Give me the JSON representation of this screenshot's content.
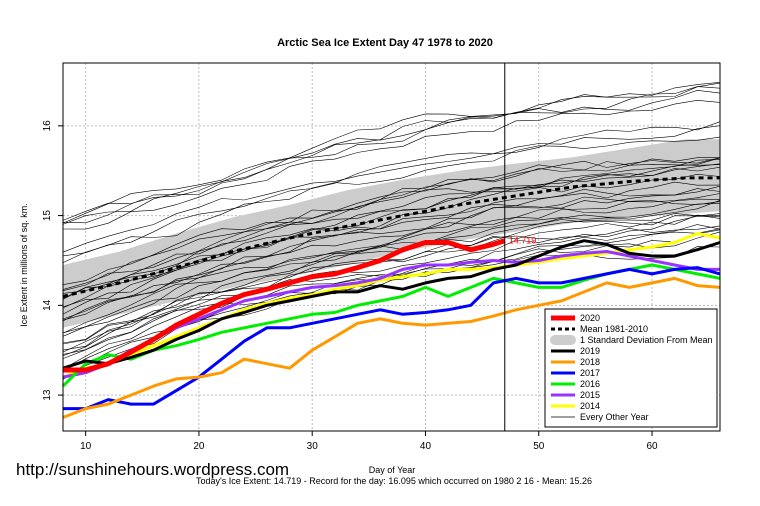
{
  "watermark": "http://sunshinehours.wordpress.com",
  "footer": "Today's Ice Extent: 14.719  - Record for the day: 16.095 which occurred on 1980 2 16  - Mean: 15.26",
  "colors": {
    "y2020": "#ff0000",
    "mean": "#000000",
    "sd_band": "#cccccc",
    "y2019": "#000000",
    "y2018": "#ff9900",
    "y2017": "#0000ff",
    "y2016": "#00ee00",
    "y2015": "#9933ff",
    "y2014": "#ffff00",
    "other": "#000000"
  },
  "chart_data": {
    "type": "line",
    "title": "Arctic Sea Ice Extent Day 47 1978 to 2020",
    "xlabel": "Day of Year",
    "ylabel": "Ice Extent in millions of sq. km.",
    "xlim": [
      8,
      66
    ],
    "ylim": [
      12.6,
      16.7
    ],
    "x_ticks": [
      10,
      20,
      30,
      40,
      50,
      60
    ],
    "y_ticks": [
      13,
      14,
      15,
      16
    ],
    "grid": true,
    "current_day": 47,
    "annotation": "14.719",
    "legend_position": "bottom-right",
    "legend": [
      "2020",
      "Mean 1981-2010",
      "1 Standard Deviation From Mean",
      "2019",
      "2018",
      "2017",
      "2016",
      "2015",
      "2014",
      "Every Other Year"
    ],
    "sd_band": {
      "x": [
        8,
        13,
        18,
        23,
        28,
        33,
        38,
        43,
        48,
        53,
        58,
        63,
        66
      ],
      "lower": [
        13.75,
        13.9,
        14.05,
        14.2,
        14.32,
        14.45,
        14.6,
        14.72,
        14.82,
        14.92,
        14.98,
        15.02,
        15.05
      ],
      "upper": [
        14.45,
        14.6,
        14.8,
        14.98,
        15.12,
        15.28,
        15.4,
        15.5,
        15.58,
        15.65,
        15.75,
        15.85,
        15.85
      ]
    },
    "mean": {
      "x": [
        8,
        13,
        18,
        23,
        28,
        33,
        38,
        43,
        48,
        53,
        58,
        63,
        66
      ],
      "y": [
        14.1,
        14.25,
        14.42,
        14.6,
        14.75,
        14.88,
        15.0,
        15.12,
        15.22,
        15.32,
        15.38,
        15.42,
        15.42
      ]
    },
    "series": [
      {
        "name": "2020",
        "x": [
          8,
          10,
          12,
          14,
          16,
          18,
          20,
          22,
          24,
          26,
          28,
          30,
          32,
          34,
          36,
          38,
          40,
          42,
          44,
          46,
          47
        ],
        "y": [
          13.28,
          13.28,
          13.35,
          13.48,
          13.62,
          13.78,
          13.9,
          14.02,
          14.12,
          14.18,
          14.25,
          14.32,
          14.35,
          14.42,
          14.5,
          14.62,
          14.7,
          14.7,
          14.62,
          14.68,
          14.72
        ]
      },
      {
        "name": "2019",
        "x": [
          8,
          10,
          12,
          14,
          16,
          18,
          20,
          22,
          24,
          26,
          28,
          30,
          32,
          34,
          36,
          38,
          40,
          42,
          44,
          46,
          48,
          50,
          52,
          54,
          56,
          58,
          60,
          62,
          64,
          66
        ],
        "y": [
          13.3,
          13.38,
          13.35,
          13.42,
          13.5,
          13.62,
          13.72,
          13.85,
          13.92,
          14.0,
          14.05,
          14.1,
          14.15,
          14.15,
          14.22,
          14.18,
          14.25,
          14.3,
          14.32,
          14.4,
          14.45,
          14.55,
          14.65,
          14.72,
          14.68,
          14.58,
          14.55,
          14.55,
          14.62,
          14.7
        ]
      },
      {
        "name": "2018",
        "x": [
          8,
          10,
          12,
          14,
          16,
          18,
          20,
          22,
          24,
          26,
          28,
          30,
          32,
          34,
          36,
          38,
          40,
          42,
          44,
          46,
          48,
          50,
          52,
          54,
          56,
          58,
          60,
          62,
          64,
          66
        ],
        "y": [
          12.75,
          12.85,
          12.9,
          13.0,
          13.1,
          13.18,
          13.2,
          13.25,
          13.4,
          13.35,
          13.3,
          13.5,
          13.65,
          13.8,
          13.85,
          13.8,
          13.78,
          13.8,
          13.82,
          13.88,
          13.95,
          14.0,
          14.05,
          14.15,
          14.25,
          14.2,
          14.25,
          14.3,
          14.22,
          14.2
        ]
      },
      {
        "name": "2017",
        "x": [
          8,
          10,
          12,
          14,
          16,
          18,
          20,
          22,
          24,
          26,
          28,
          30,
          32,
          34,
          36,
          38,
          40,
          42,
          44,
          46,
          48,
          50,
          52,
          54,
          56,
          58,
          60,
          62,
          64,
          66
        ],
        "y": [
          12.85,
          12.85,
          12.95,
          12.9,
          12.9,
          13.05,
          13.2,
          13.4,
          13.6,
          13.75,
          13.75,
          13.8,
          13.85,
          13.9,
          13.95,
          13.9,
          13.92,
          13.95,
          14.0,
          14.25,
          14.3,
          14.25,
          14.25,
          14.3,
          14.35,
          14.4,
          14.35,
          14.4,
          14.42,
          14.35
        ]
      },
      {
        "name": "2016",
        "x": [
          8,
          10,
          12,
          14,
          16,
          18,
          20,
          22,
          24,
          26,
          28,
          30,
          32,
          34,
          36,
          38,
          40,
          42,
          44,
          46,
          48,
          50,
          52,
          54,
          56,
          58,
          60,
          62,
          64,
          66
        ],
        "y": [
          13.1,
          13.35,
          13.45,
          13.4,
          13.5,
          13.55,
          13.62,
          13.7,
          13.75,
          13.8,
          13.85,
          13.9,
          13.92,
          14.0,
          14.05,
          14.1,
          14.2,
          14.1,
          14.2,
          14.3,
          14.25,
          14.2,
          14.2,
          14.28,
          14.35,
          14.4,
          14.45,
          14.4,
          14.35,
          14.3
        ]
      },
      {
        "name": "2015",
        "x": [
          8,
          10,
          12,
          14,
          16,
          18,
          20,
          22,
          24,
          26,
          28,
          30,
          32,
          34,
          36,
          38,
          40,
          42,
          44,
          46,
          48,
          50,
          52,
          54,
          56,
          58,
          60,
          62,
          64,
          66
        ],
        "y": [
          13.2,
          13.25,
          13.35,
          13.5,
          13.62,
          13.75,
          13.85,
          13.95,
          14.05,
          14.1,
          14.15,
          14.2,
          14.22,
          14.25,
          14.3,
          14.4,
          14.45,
          14.45,
          14.48,
          14.5,
          14.48,
          14.5,
          14.55,
          14.58,
          14.6,
          14.55,
          14.5,
          14.45,
          14.4,
          14.4
        ]
      },
      {
        "name": "2014",
        "x": [
          8,
          10,
          12,
          14,
          16,
          18,
          20,
          22,
          24,
          26,
          28,
          30,
          32,
          34,
          36,
          38,
          40,
          42,
          44,
          46,
          48,
          50,
          52,
          54,
          56,
          58,
          60,
          62,
          64,
          66
        ],
        "y": [
          13.2,
          13.3,
          13.35,
          13.45,
          13.55,
          13.65,
          13.75,
          13.85,
          13.95,
          14.02,
          14.08,
          14.12,
          14.18,
          14.22,
          14.28,
          14.32,
          14.35,
          14.4,
          14.4,
          14.42,
          14.45,
          14.48,
          14.52,
          14.55,
          14.58,
          14.62,
          14.65,
          14.7,
          14.8,
          14.75
        ]
      }
    ],
    "other_years_range": {
      "x": [
        8,
        20,
        30,
        40,
        50,
        60,
        66
      ],
      "low": [
        13.2,
        13.8,
        14.1,
        14.3,
        14.5,
        14.6,
        14.7
      ],
      "high": [
        15.0,
        15.4,
        15.8,
        16.1,
        16.3,
        16.4,
        16.5
      ]
    }
  }
}
